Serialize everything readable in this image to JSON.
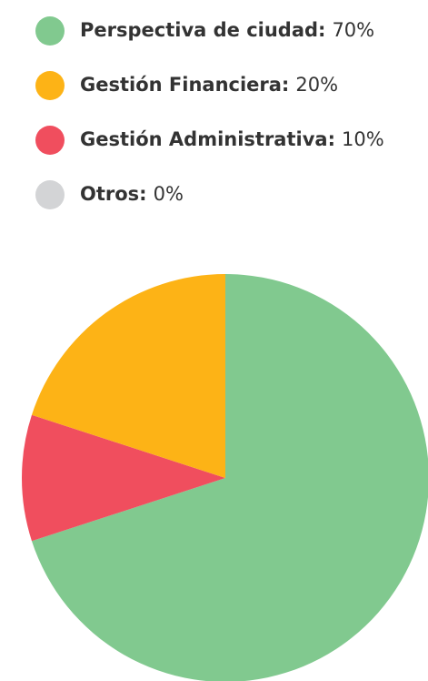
{
  "chart_data": {
    "type": "pie",
    "categories": [
      "Perspectiva de ciudad:",
      "Gestión Financiera:",
      "Gestión Administrativa:",
      "Otros:"
    ],
    "values": [
      70,
      20,
      10,
      0
    ],
    "value_labels": [
      "70%",
      "20%",
      "10%",
      "0%"
    ],
    "colors": [
      "#81c98f",
      "#fdb316",
      "#f04e5e",
      "#d3d4d6"
    ]
  }
}
